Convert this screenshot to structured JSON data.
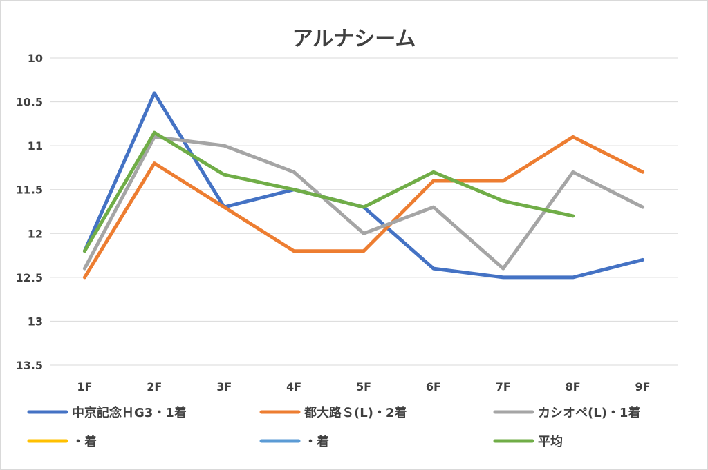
{
  "chart_data": {
    "type": "line",
    "title": "アルナシーム",
    "xlabel": "",
    "ylabel": "",
    "categories": [
      "1F",
      "2F",
      "3F",
      "4F",
      "5F",
      "6F",
      "7F",
      "8F",
      "9F"
    ],
    "ylim": [
      13.5,
      10
    ],
    "y_inverted": true,
    "y_ticks": [
      "10",
      "10.5",
      "11",
      "11.5",
      "12",
      "12.5",
      "13",
      "13.5"
    ],
    "grid": true,
    "legend_position": "bottom",
    "series": [
      {
        "name": "中京記念ＨG3・1着",
        "color": "#4472c4",
        "values": [
          12.2,
          10.4,
          11.7,
          11.5,
          11.7,
          12.4,
          12.5,
          12.5,
          12.3
        ]
      },
      {
        "name": "都大路Ｓ(L)・2着",
        "color": "#ed7d31",
        "values": [
          12.5,
          11.2,
          11.7,
          12.2,
          12.2,
          11.4,
          11.4,
          10.9,
          11.3
        ]
      },
      {
        "name": "カシオペ(L)・1着",
        "color": "#a5a5a5",
        "values": [
          12.4,
          10.9,
          11.0,
          11.3,
          12.0,
          11.7,
          12.4,
          11.3,
          11.7
        ]
      },
      {
        "name": "・着",
        "color": "#ffc000",
        "values": [
          null,
          null,
          null,
          null,
          null,
          null,
          null,
          null,
          null
        ]
      },
      {
        "name": "・着",
        "color": "#5b9bd5",
        "values": [
          null,
          null,
          null,
          null,
          null,
          null,
          null,
          null,
          null
        ]
      },
      {
        "name": "平均",
        "color": "#70ad47",
        "values": [
          12.2,
          10.85,
          11.33,
          11.5,
          11.7,
          11.3,
          11.63,
          11.8,
          null
        ]
      }
    ]
  }
}
